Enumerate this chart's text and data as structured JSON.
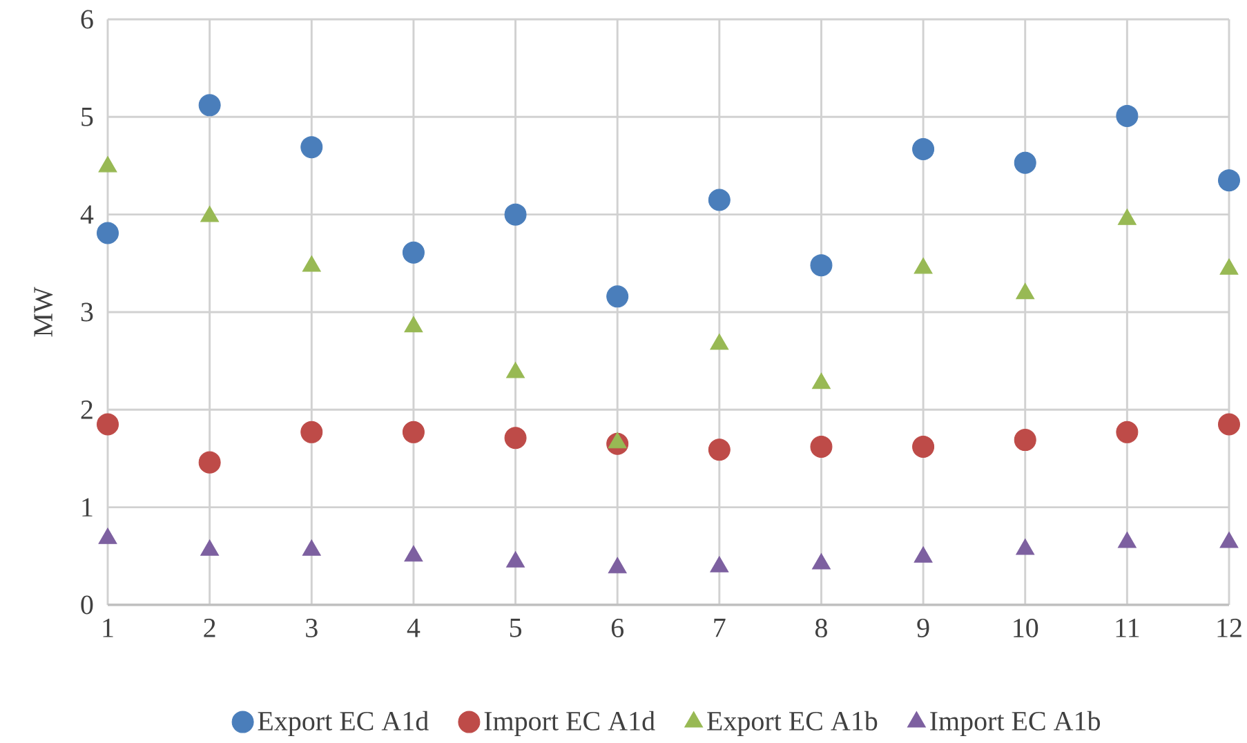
{
  "chart_data": {
    "type": "scatter",
    "ylabel": "MW",
    "x": [
      1,
      2,
      3,
      4,
      5,
      6,
      7,
      8,
      9,
      10,
      11,
      12
    ],
    "xlim": [
      1,
      12
    ],
    "xticks": [
      1,
      2,
      3,
      4,
      5,
      6,
      7,
      8,
      9,
      10,
      11,
      12
    ],
    "ylim": [
      0,
      6
    ],
    "yticks": [
      0,
      1,
      2,
      3,
      4,
      5,
      6
    ],
    "grid": true,
    "legend": "bottom",
    "series": [
      {
        "name": "Export EC A1d",
        "color": "#4a7ebb",
        "marker": "circle",
        "values": [
          3.81,
          5.12,
          4.69,
          3.61,
          4.0,
          3.16,
          4.15,
          3.48,
          4.67,
          4.53,
          5.01,
          4.35
        ]
      },
      {
        "name": "Import EC A1d",
        "color": "#be4b48",
        "marker": "circle",
        "values": [
          1.85,
          1.46,
          1.77,
          1.77,
          1.71,
          1.65,
          1.59,
          1.62,
          1.62,
          1.69,
          1.77,
          1.85
        ]
      },
      {
        "name": "Export EC A1b",
        "color": "#98b954",
        "marker": "triangle",
        "values": [
          4.49,
          3.98,
          3.47,
          2.85,
          2.38,
          1.66,
          2.67,
          2.27,
          3.45,
          3.19,
          3.95,
          3.44
        ]
      },
      {
        "name": "Import EC A1b",
        "color": "#7d60a0",
        "marker": "triangle",
        "values": [
          0.68,
          0.56,
          0.56,
          0.5,
          0.44,
          0.38,
          0.39,
          0.42,
          0.49,
          0.57,
          0.64,
          0.64
        ]
      }
    ]
  }
}
